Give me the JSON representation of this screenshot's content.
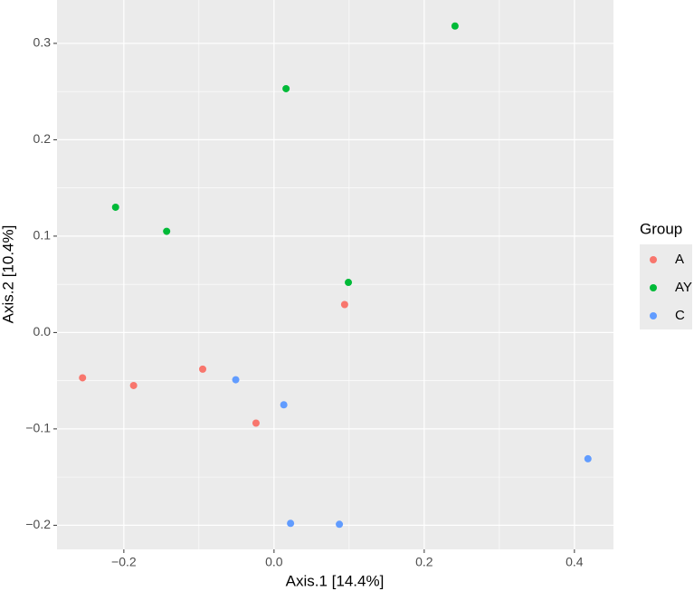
{
  "chart_data": {
    "type": "scatter",
    "x_label": "Axis.1   [14.4%]",
    "y_label": "Axis.2   [10.4%]",
    "legend_title": "Group",
    "legend_position": "right",
    "grid": true,
    "xlim": [
      -0.289,
      0.452
    ],
    "ylim": [
      -0.225,
      0.345
    ],
    "xticks": [
      {
        "value": -0.2,
        "label": "−0.2"
      },
      {
        "value": 0,
        "label": "0.0"
      },
      0.2,
      0.4
    ],
    "yticks": [
      {
        "value": -0.2,
        "label": "−0.2"
      },
      {
        "value": -0.1,
        "label": "−0.1"
      },
      {
        "value": 0,
        "label": "0.0"
      },
      0.1,
      0.2,
      0.3
    ],
    "series": [
      {
        "name": "A",
        "color": "#F8766D",
        "x": [
          0.094,
          -0.255,
          -0.187,
          -0.095,
          -0.024
        ],
        "values": [
          0.029,
          -0.047,
          -0.055,
          -0.038,
          -0.094
        ]
      },
      {
        "name": "AY",
        "color": "#00BA38",
        "x": [
          0.241,
          0.016,
          -0.211,
          -0.143,
          0.099
        ],
        "values": [
          0.318,
          0.253,
          0.13,
          0.105,
          0.052
        ]
      },
      {
        "name": "C",
        "color": "#619CFF",
        "x": [
          -0.051,
          0.013,
          0.418,
          0.022,
          0.087
        ],
        "values": [
          -0.049,
          -0.075,
          -0.131,
          -0.198,
          -0.199
        ]
      }
    ]
  }
}
